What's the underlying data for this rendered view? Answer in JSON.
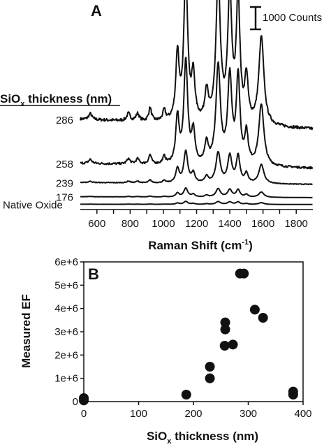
{
  "chart_data": [
    {
      "type": "line",
      "panel_label": "A",
      "xlabel_main": "Raman Shift (cm",
      "xlabel_sup": "-1",
      "xlabel_end": ")",
      "xlim": [
        500,
        1900
      ],
      "xticks": [
        600,
        700,
        800,
        900,
        1000,
        1100,
        1200,
        1300,
        1400,
        1500,
        1600,
        1700,
        1800
      ],
      "ylabel": "",
      "legend_title_main": "SiO",
      "legend_title_sub": "x",
      "legend_title_end": " thickness (nm)",
      "scale_bar_label": "1000 Counts",
      "baseline_noise": 0.01,
      "peaks": [
        {
          "x": 560,
          "w": 12,
          "rel": 0.04
        },
        {
          "x": 790,
          "w": 12,
          "rel": 0.05
        },
        {
          "x": 845,
          "w": 12,
          "rel": 0.05
        },
        {
          "x": 920,
          "w": 10,
          "rel": 0.09
        },
        {
          "x": 1005,
          "w": 10,
          "rel": 0.07
        },
        {
          "x": 1085,
          "w": 12,
          "rel": 0.45
        },
        {
          "x": 1135,
          "w": 14,
          "rel": 1.0
        },
        {
          "x": 1180,
          "w": 12,
          "rel": 0.3
        },
        {
          "x": 1260,
          "w": 12,
          "rel": 0.2
        },
        {
          "x": 1330,
          "w": 16,
          "rel": 0.95
        },
        {
          "x": 1400,
          "w": 15,
          "rel": 0.85
        },
        {
          "x": 1450,
          "w": 13,
          "rel": 0.85
        },
        {
          "x": 1500,
          "w": 12,
          "rel": 0.3
        },
        {
          "x": 1590,
          "w": 18,
          "rel": 0.6
        }
      ],
      "series": [
        {
          "name": "286",
          "offset": 1500,
          "peak_height": 3000,
          "slope": 200
        },
        {
          "name": "258",
          "offset": 700,
          "peak_height": 2100,
          "slope": 100
        },
        {
          "name": "239",
          "offset": 370,
          "peak_height": 650,
          "slope": 40
        },
        {
          "name": "176",
          "offset": 100,
          "peak_height": 180,
          "slope": 20
        },
        {
          "name": "Native Oxide",
          "offset": -40,
          "peak_height": 60,
          "slope": 5
        }
      ],
      "series_label_order": [
        "286",
        "258",
        "239",
        "176",
        "Native Oxide"
      ]
    },
    {
      "type": "scatter",
      "panel_label": "B",
      "xlabel_main": "SiO",
      "xlabel_sub": "x",
      "xlabel_end": " thickness (nm)",
      "ylabel": "Measured EF",
      "xlim": [
        0,
        400
      ],
      "ylim": [
        0,
        6000000
      ],
      "xticks": [
        0,
        100,
        200,
        300,
        400
      ],
      "yticks": [
        0,
        1000000,
        2000000,
        3000000,
        4000000,
        5000000,
        6000000
      ],
      "ytick_labels": [
        "0",
        "1e+6",
        "2e+6",
        "3e+6",
        "4e+6",
        "5e+6",
        "6e+6"
      ],
      "points": [
        {
          "x": 0,
          "y": 50000
        },
        {
          "x": 0,
          "y": 150000
        },
        {
          "x": 187,
          "y": 300000
        },
        {
          "x": 230,
          "y": 1000000
        },
        {
          "x": 230,
          "y": 1500000
        },
        {
          "x": 257,
          "y": 2400000
        },
        {
          "x": 258,
          "y": 3100000
        },
        {
          "x": 258,
          "y": 3400000
        },
        {
          "x": 272,
          "y": 2450000
        },
        {
          "x": 285,
          "y": 5500000
        },
        {
          "x": 292,
          "y": 5500000
        },
        {
          "x": 312,
          "y": 3950000
        },
        {
          "x": 327,
          "y": 3600000
        },
        {
          "x": 382,
          "y": 300000
        },
        {
          "x": 382,
          "y": 430000
        }
      ]
    }
  ]
}
